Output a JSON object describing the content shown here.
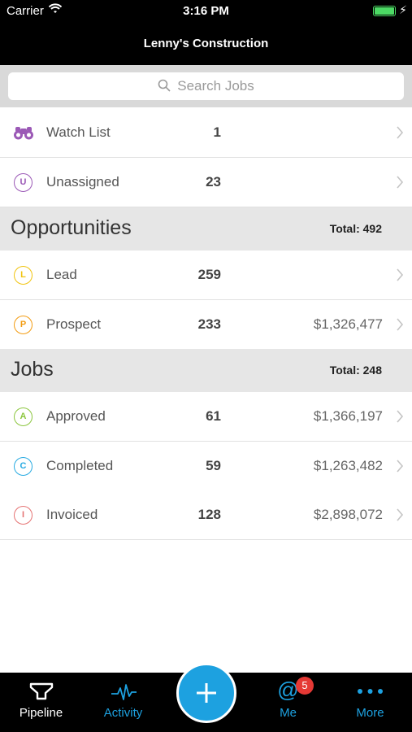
{
  "status_bar": {
    "carrier": "Carrier",
    "time": "3:16 PM"
  },
  "nav": {
    "title": "Lenny's Construction"
  },
  "search": {
    "placeholder": "Search Jobs"
  },
  "top_rows": [
    {
      "label": "Watch List",
      "count": "1",
      "icon": "binoculars-icon"
    },
    {
      "label": "Unassigned",
      "count": "23",
      "badge_letter": "U",
      "color": "#9b59b6"
    }
  ],
  "opportunities": {
    "title": "Opportunities",
    "total": "Total: 492",
    "rows": [
      {
        "label": "Lead",
        "count": "259",
        "amount": "",
        "badge_letter": "L",
        "color": "#f1c40f"
      },
      {
        "label": "Prospect",
        "count": "233",
        "amount": "$1,326,477",
        "badge_letter": "P",
        "color": "#f39c12"
      }
    ]
  },
  "jobs": {
    "title": "Jobs",
    "total": "Total: 248",
    "rows": [
      {
        "label": "Approved",
        "count": "61",
        "amount": "$1,366,197",
        "badge_letter": "A",
        "color": "#8cc63f"
      },
      {
        "label": "Completed",
        "count": "59",
        "amount": "$1,263,482",
        "badge_letter": "C",
        "color": "#29abe2"
      },
      {
        "label": "Invoiced",
        "count": "128",
        "amount": "$2,898,072",
        "badge_letter": "I",
        "color": "#e57373"
      }
    ]
  },
  "tabbar": {
    "pipeline": "Pipeline",
    "activity": "Activity",
    "me": "Me",
    "me_badge": "5",
    "more": "More"
  },
  "colors": {
    "accent": "#1da1e0",
    "selected_tab": "#ffffff",
    "tab_inactive": "#1da1e0"
  }
}
